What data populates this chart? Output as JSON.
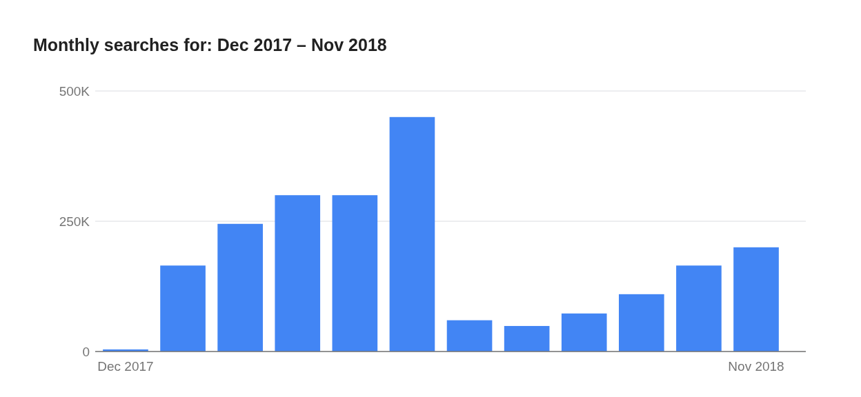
{
  "chart_data": {
    "type": "bar",
    "title": "Monthly searches for: Dec 2017 – Nov 2018",
    "categories": [
      "Dec 2017",
      null,
      null,
      null,
      null,
      null,
      null,
      null,
      null,
      null,
      null,
      "Nov 2018"
    ],
    "values": [
      4000,
      165000,
      245000,
      300000,
      300000,
      450000,
      60000,
      49000,
      73000,
      110000,
      165000,
      200000
    ],
    "color": "#4285f4",
    "ylim": [
      0,
      500000
    ],
    "yticks": [
      {
        "value": 0,
        "label": "0"
      },
      {
        "value": 250000,
        "label": "250K"
      },
      {
        "value": 500000,
        "label": "500K"
      }
    ],
    "grid": "y"
  }
}
